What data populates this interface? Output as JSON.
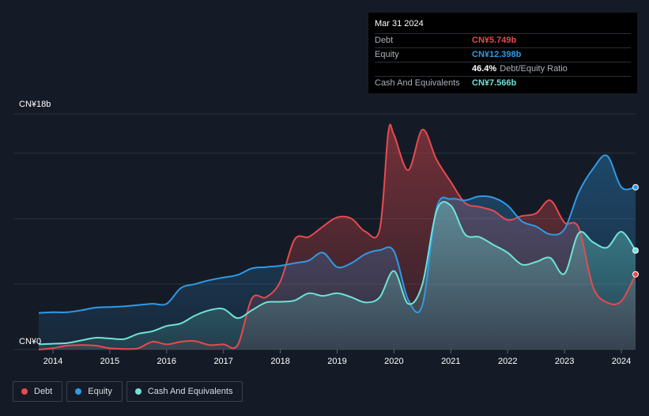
{
  "tooltip": {
    "date": "Mar 31 2024",
    "rows": [
      {
        "label": "Debt",
        "value": "CN¥5.749b",
        "color": "#e64a4f",
        "extra": ""
      },
      {
        "label": "Equity",
        "value": "CN¥12.398b",
        "color": "#2f9ae6",
        "extra": ""
      },
      {
        "label": "",
        "value": "46.4%",
        "color": "#ffffff",
        "extra": "Debt/Equity Ratio"
      },
      {
        "label": "Cash And Equivalents",
        "value": "CN¥7.566b",
        "color": "#6fe3d6",
        "extra": ""
      }
    ]
  },
  "legend": [
    {
      "label": "Debt",
      "color": "#e64a4f"
    },
    {
      "label": "Equity",
      "color": "#2f9ae6"
    },
    {
      "label": "Cash And Equivalents",
      "color": "#6fe3d6"
    }
  ],
  "chart_data": {
    "type": "area",
    "title": "",
    "xlabel": "",
    "ylabel": "",
    "ylim": [
      0,
      18
    ],
    "y_tick_labels": [
      "CN¥0",
      "CN¥18b"
    ],
    "x_tick_labels": [
      "2014",
      "2015",
      "2016",
      "2017",
      "2018",
      "2019",
      "2020",
      "2021",
      "2022",
      "2023",
      "2024"
    ],
    "x_range": [
      2013.75,
      2024.25
    ],
    "series": [
      {
        "name": "Debt",
        "color": "#e64a4f",
        "points": [
          [
            2013.75,
            0.0
          ],
          [
            2014.0,
            0.1
          ],
          [
            2014.25,
            0.3
          ],
          [
            2014.5,
            0.35
          ],
          [
            2014.75,
            0.3
          ],
          [
            2015.0,
            0.1
          ],
          [
            2015.25,
            0.05
          ],
          [
            2015.5,
            0.1
          ],
          [
            2015.75,
            0.6
          ],
          [
            2016.0,
            0.4
          ],
          [
            2016.25,
            0.6
          ],
          [
            2016.5,
            0.65
          ],
          [
            2016.75,
            0.35
          ],
          [
            2017.0,
            0.4
          ],
          [
            2017.25,
            0.35
          ],
          [
            2017.5,
            3.9
          ],
          [
            2017.75,
            4.0
          ],
          [
            2018.0,
            5.2
          ],
          [
            2018.25,
            8.4
          ],
          [
            2018.5,
            8.6
          ],
          [
            2018.75,
            9.4
          ],
          [
            2019.0,
            10.1
          ],
          [
            2019.25,
            10.0
          ],
          [
            2019.5,
            9.0
          ],
          [
            2019.75,
            9.2
          ],
          [
            2019.9,
            16.6
          ],
          [
            2020.0,
            16.4
          ],
          [
            2020.25,
            13.7
          ],
          [
            2020.5,
            16.8
          ],
          [
            2020.75,
            14.5
          ],
          [
            2021.0,
            12.8
          ],
          [
            2021.25,
            11.2
          ],
          [
            2021.5,
            10.9
          ],
          [
            2021.75,
            10.6
          ],
          [
            2022.0,
            9.9
          ],
          [
            2022.25,
            10.2
          ],
          [
            2022.5,
            10.4
          ],
          [
            2022.75,
            11.4
          ],
          [
            2023.0,
            9.7
          ],
          [
            2023.25,
            9.3
          ],
          [
            2023.5,
            4.8
          ],
          [
            2023.75,
            3.6
          ],
          [
            2024.0,
            3.7
          ],
          [
            2024.25,
            5.749
          ]
        ]
      },
      {
        "name": "Equity",
        "color": "#2f9ae6",
        "points": [
          [
            2013.75,
            2.8
          ],
          [
            2014.0,
            2.85
          ],
          [
            2014.25,
            2.85
          ],
          [
            2014.5,
            3.0
          ],
          [
            2014.75,
            3.2
          ],
          [
            2015.0,
            3.25
          ],
          [
            2015.25,
            3.3
          ],
          [
            2015.5,
            3.4
          ],
          [
            2015.75,
            3.5
          ],
          [
            2016.0,
            3.5
          ],
          [
            2016.25,
            4.7
          ],
          [
            2016.5,
            5.0
          ],
          [
            2016.75,
            5.3
          ],
          [
            2017.0,
            5.5
          ],
          [
            2017.25,
            5.7
          ],
          [
            2017.5,
            6.2
          ],
          [
            2017.75,
            6.3
          ],
          [
            2018.0,
            6.4
          ],
          [
            2018.25,
            6.6
          ],
          [
            2018.5,
            6.8
          ],
          [
            2018.75,
            7.4
          ],
          [
            2019.0,
            6.3
          ],
          [
            2019.25,
            6.6
          ],
          [
            2019.5,
            7.3
          ],
          [
            2019.75,
            7.6
          ],
          [
            2020.0,
            7.5
          ],
          [
            2020.25,
            3.8
          ],
          [
            2020.5,
            3.4
          ],
          [
            2020.75,
            10.8
          ],
          [
            2021.0,
            11.5
          ],
          [
            2021.25,
            11.4
          ],
          [
            2021.5,
            11.7
          ],
          [
            2021.75,
            11.6
          ],
          [
            2022.0,
            11.0
          ],
          [
            2022.25,
            9.8
          ],
          [
            2022.5,
            9.4
          ],
          [
            2022.75,
            8.8
          ],
          [
            2023.0,
            9.2
          ],
          [
            2023.25,
            12.0
          ],
          [
            2023.5,
            13.8
          ],
          [
            2023.75,
            14.8
          ],
          [
            2024.0,
            12.4
          ],
          [
            2024.25,
            12.398
          ]
        ]
      },
      {
        "name": "Cash And Equivalents",
        "color": "#6fe3d6",
        "points": [
          [
            2013.75,
            0.4
          ],
          [
            2014.0,
            0.45
          ],
          [
            2014.25,
            0.5
          ],
          [
            2014.5,
            0.7
          ],
          [
            2014.75,
            0.9
          ],
          [
            2015.0,
            0.85
          ],
          [
            2015.25,
            0.8
          ],
          [
            2015.5,
            1.2
          ],
          [
            2015.75,
            1.4
          ],
          [
            2016.0,
            1.8
          ],
          [
            2016.25,
            2.0
          ],
          [
            2016.5,
            2.6
          ],
          [
            2016.75,
            3.0
          ],
          [
            2017.0,
            3.1
          ],
          [
            2017.25,
            2.4
          ],
          [
            2017.5,
            3.0
          ],
          [
            2017.75,
            3.6
          ],
          [
            2018.0,
            3.65
          ],
          [
            2018.25,
            3.75
          ],
          [
            2018.5,
            4.3
          ],
          [
            2018.75,
            4.1
          ],
          [
            2019.0,
            4.3
          ],
          [
            2019.25,
            4.0
          ],
          [
            2019.5,
            3.6
          ],
          [
            2019.75,
            4.0
          ],
          [
            2020.0,
            6.0
          ],
          [
            2020.25,
            3.5
          ],
          [
            2020.5,
            5.0
          ],
          [
            2020.75,
            10.6
          ],
          [
            2021.0,
            11.0
          ],
          [
            2021.25,
            8.8
          ],
          [
            2021.5,
            8.6
          ],
          [
            2021.75,
            8.0
          ],
          [
            2022.0,
            7.4
          ],
          [
            2022.25,
            6.5
          ],
          [
            2022.5,
            6.7
          ],
          [
            2022.75,
            7.0
          ],
          [
            2023.0,
            5.8
          ],
          [
            2023.25,
            8.9
          ],
          [
            2023.5,
            8.2
          ],
          [
            2023.75,
            7.8
          ],
          [
            2024.0,
            9.0
          ],
          [
            2024.25,
            7.566
          ]
        ]
      }
    ]
  }
}
